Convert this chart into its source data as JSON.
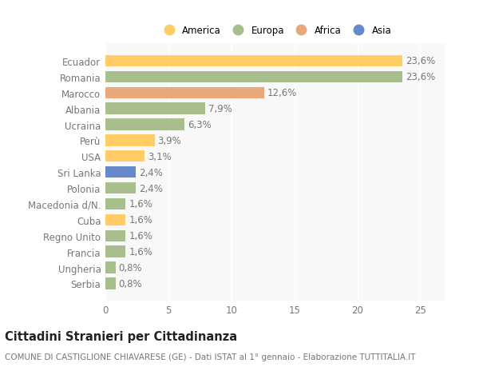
{
  "title": "Cittadini Stranieri per Cittadinanza",
  "subtitle": "COMUNE DI CASTIGLIONE CHIAVARESE (GE) - Dati ISTAT al 1° gennaio - Elaborazione TUTTITALIA.IT",
  "categories": [
    "Ecuador",
    "Romania",
    "Marocco",
    "Albania",
    "Ucraina",
    "Perù",
    "USA",
    "Sri Lanka",
    "Polonia",
    "Macedonia d/N.",
    "Cuba",
    "Regno Unito",
    "Francia",
    "Ungheria",
    "Serbia"
  ],
  "values": [
    23.6,
    23.6,
    12.6,
    7.9,
    6.3,
    3.9,
    3.1,
    2.4,
    2.4,
    1.6,
    1.6,
    1.6,
    1.6,
    0.8,
    0.8
  ],
  "colors": [
    "#FFCC66",
    "#A8BE8C",
    "#E8A878",
    "#A8BE8C",
    "#A8BE8C",
    "#FFCC66",
    "#FFCC66",
    "#6688CC",
    "#A8BE8C",
    "#A8BE8C",
    "#FFCC66",
    "#A8BE8C",
    "#A8BE8C",
    "#A8BE8C",
    "#A8BE8C"
  ],
  "labels": [
    "23,6%",
    "23,6%",
    "12,6%",
    "7,9%",
    "6,3%",
    "3,9%",
    "3,1%",
    "2,4%",
    "2,4%",
    "1,6%",
    "1,6%",
    "1,6%",
    "1,6%",
    "0,8%",
    "0,8%"
  ],
  "legend": [
    {
      "label": "America",
      "color": "#FFCC66"
    },
    {
      "label": "Europa",
      "color": "#A8BE8C"
    },
    {
      "label": "Africa",
      "color": "#E8A878"
    },
    {
      "label": "Asia",
      "color": "#6688CC"
    }
  ],
  "xlim": [
    0,
    27
  ],
  "xticks": [
    0,
    5,
    10,
    15,
    20,
    25
  ],
  "background_color": "#FFFFFF",
  "plot_bg_color": "#F8F8F8",
  "grid_color": "#FFFFFF",
  "bar_height": 0.72,
  "label_fontsize": 8.5,
  "tick_fontsize": 8.5,
  "title_fontsize": 10.5,
  "subtitle_fontsize": 7.5,
  "text_color": "#777777"
}
